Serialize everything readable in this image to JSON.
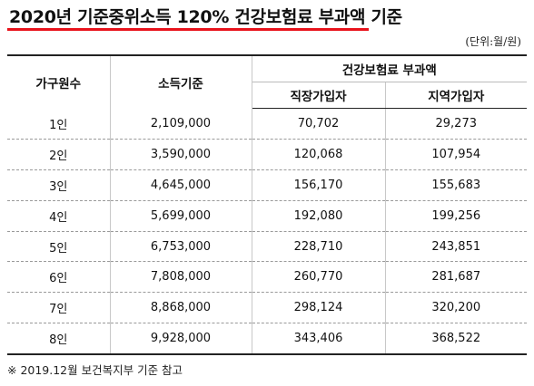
{
  "title": "2020년 기준중위소득 120% 건강보험료 부과액 기준",
  "unit": "(단위:월/원)",
  "headers": {
    "household": "가구원수",
    "income": "소득기준",
    "premium": "건강보험료 부과액",
    "employee": "직장가입자",
    "regional": "지역가입자"
  },
  "rows": [
    {
      "household": "1인",
      "income": "2,109,000",
      "employee": "70,702",
      "regional": "29,273"
    },
    {
      "household": "2인",
      "income": "3,590,000",
      "employee": "120,068",
      "regional": "107,954"
    },
    {
      "household": "3인",
      "income": "4,645,000",
      "employee": "156,170",
      "regional": "155,683"
    },
    {
      "household": "4인",
      "income": "5,699,000",
      "employee": "192,080",
      "regional": "199,256"
    },
    {
      "household": "5인",
      "income": "6,753,000",
      "employee": "228,710",
      "regional": "243,851"
    },
    {
      "household": "6인",
      "income": "7,808,000",
      "employee": "260,770",
      "regional": "281,687"
    },
    {
      "household": "7인",
      "income": "8,868,000",
      "employee": "298,124",
      "regional": "320,200"
    },
    {
      "household": "8인",
      "income": "9,928,000",
      "employee": "343,406",
      "regional": "368,522"
    }
  ],
  "footnote": "※ 2019.12월 보건복지부 기준 참고",
  "colors": {
    "title_underline": "#e8121b"
  }
}
